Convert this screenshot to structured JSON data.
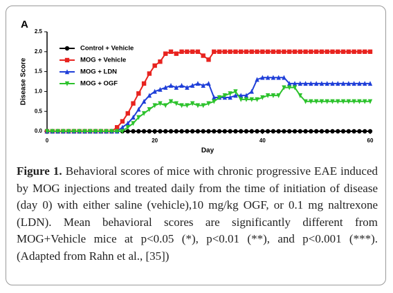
{
  "chart_data": {
    "type": "line",
    "panel_label": "A",
    "xlabel": "Day",
    "ylabel": "Disease Score",
    "x": [
      0,
      1,
      2,
      3,
      4,
      5,
      6,
      7,
      8,
      9,
      10,
      11,
      12,
      13,
      14,
      15,
      16,
      17,
      18,
      19,
      20,
      21,
      22,
      23,
      24,
      25,
      26,
      27,
      28,
      29,
      30,
      31,
      32,
      33,
      34,
      35,
      36,
      37,
      38,
      39,
      40,
      41,
      42,
      43,
      44,
      45,
      46,
      47,
      48,
      49,
      50,
      51,
      52,
      53,
      54,
      55,
      56,
      57,
      58,
      59,
      60
    ],
    "series": [
      {
        "name": "Control + Vehicle",
        "color": "#000000",
        "marker": "circle",
        "values": [
          0,
          0,
          0,
          0,
          0,
          0,
          0,
          0,
          0,
          0,
          0,
          0,
          0,
          0,
          0,
          0,
          0,
          0,
          0,
          0,
          0,
          0,
          0,
          0,
          0,
          0,
          0,
          0,
          0,
          0,
          0,
          0,
          0,
          0,
          0,
          0,
          0,
          0,
          0,
          0,
          0,
          0,
          0,
          0,
          0,
          0,
          0,
          0,
          0,
          0,
          0,
          0,
          0,
          0,
          0,
          0,
          0,
          0,
          0,
          0,
          0
        ]
      },
      {
        "name": "MOG + Vehicle",
        "color": "#e8231f",
        "marker": "square",
        "values": [
          0,
          0,
          0,
          0,
          0,
          0,
          0,
          0,
          0,
          0,
          0,
          0,
          0,
          0.1,
          0.25,
          0.45,
          0.7,
          0.95,
          1.2,
          1.45,
          1.65,
          1.75,
          1.95,
          2.0,
          1.95,
          2.0,
          2.0,
          2.0,
          2.0,
          1.9,
          1.8,
          2.0,
          2.0,
          2.0,
          2.0,
          2.0,
          2.0,
          2.0,
          2.0,
          2.0,
          2.0,
          2.0,
          2.0,
          2.0,
          2.0,
          2.0,
          2.0,
          2.0,
          2.0,
          2.0,
          2.0,
          2.0,
          2.0,
          2.0,
          2.0,
          2.0,
          2.0,
          2.0,
          2.0,
          2.0,
          2.0
        ]
      },
      {
        "name": "MOG + LDN",
        "color": "#1f3fd8",
        "marker": "triangle",
        "values": [
          0,
          0,
          0,
          0,
          0,
          0,
          0,
          0,
          0,
          0,
          0,
          0,
          0,
          0,
          0.1,
          0.2,
          0.35,
          0.55,
          0.75,
          0.9,
          1.0,
          1.05,
          1.1,
          1.15,
          1.1,
          1.15,
          1.1,
          1.15,
          1.2,
          1.15,
          1.2,
          0.85,
          0.85,
          0.85,
          0.85,
          0.9,
          0.9,
          0.9,
          1.0,
          1.3,
          1.35,
          1.35,
          1.35,
          1.35,
          1.35,
          1.2,
          1.2,
          1.2,
          1.2,
          1.2,
          1.2,
          1.2,
          1.2,
          1.2,
          1.2,
          1.2,
          1.2,
          1.2,
          1.2,
          1.2,
          1.2
        ]
      },
      {
        "name": "MOG + OGF",
        "color": "#2cc22c",
        "marker": "triangle-down",
        "values": [
          0,
          0,
          0,
          0,
          0,
          0,
          0,
          0,
          0,
          0,
          0,
          0,
          0,
          0,
          0,
          0.1,
          0.2,
          0.35,
          0.45,
          0.55,
          0.65,
          0.7,
          0.65,
          0.75,
          0.7,
          0.65,
          0.65,
          0.7,
          0.65,
          0.65,
          0.7,
          0.75,
          0.85,
          0.9,
          0.95,
          1.0,
          0.8,
          0.8,
          0.8,
          0.8,
          0.85,
          0.9,
          0.9,
          0.9,
          1.1,
          1.1,
          1.1,
          0.9,
          0.75,
          0.75,
          0.75,
          0.75,
          0.75,
          0.75,
          0.75,
          0.75,
          0.75,
          0.75,
          0.75,
          0.75,
          0.75
        ]
      }
    ],
    "xlim": [
      0,
      60
    ],
    "xticks": [
      0,
      20,
      40,
      60
    ],
    "ylim": [
      0,
      2.5
    ],
    "yticks": [
      {
        "value": 0,
        "label": "0.0"
      },
      0.5,
      {
        "value": 1,
        "label": "1.0"
      },
      1.5,
      {
        "value": 2,
        "label": "2.0"
      },
      2.5
    ],
    "legend": "upper left"
  },
  "caption": {
    "label": "Figure 1.",
    "text": "Behavioral scores of mice with chronic progressive EAE induced by MOG injections and treated daily from the time of initiation of disease (day 0) with either saline (vehicle),10 mg/kg OGF, or 0.1 mg naltrexone (LDN). Mean behavioral scores are significantly different from MOG+Vehicle mice at p<0.05 (*), p<0.01 (**), and p<0.001 (***). (Adapted from Rahn et al., [35])"
  }
}
